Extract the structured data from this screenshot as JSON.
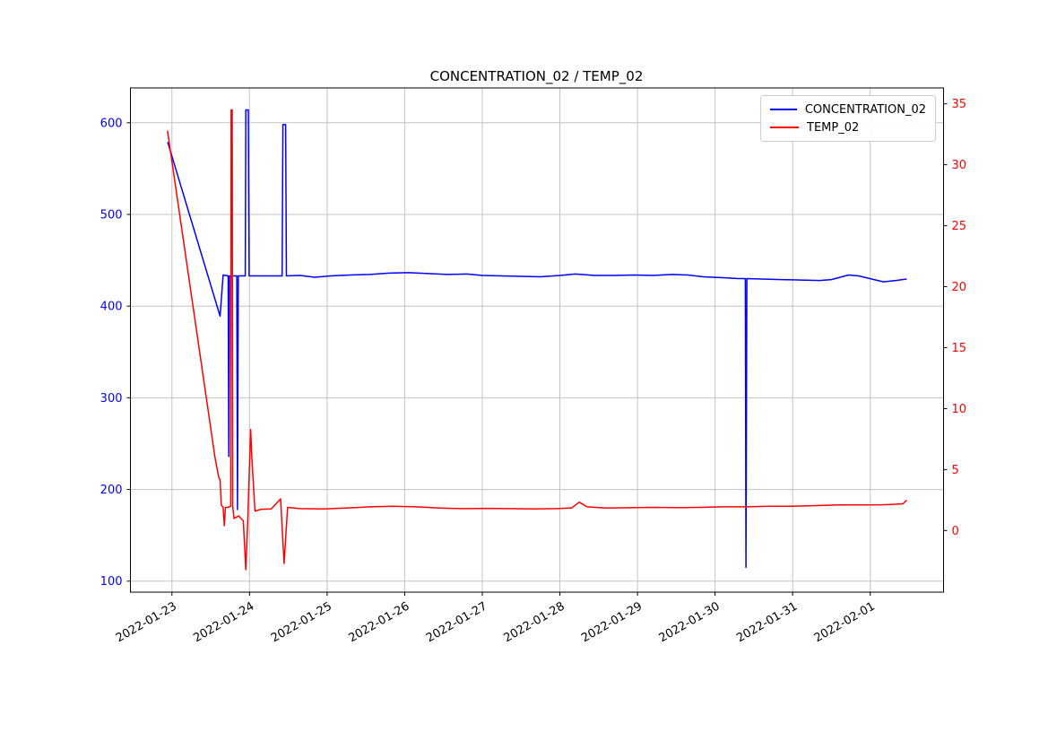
{
  "title": "CONCENTRATION_02 / TEMP_02",
  "legend": {
    "items": [
      {
        "label": "CONCENTRATION_02",
        "color": "#0000ff"
      },
      {
        "label": "TEMP_02",
        "color": "#ff0000"
      }
    ]
  },
  "chart_data": {
    "type": "line",
    "title": "CONCENTRATION_02 / TEMP_02",
    "grid": true,
    "legend_position": "upper-right",
    "x_axis": {
      "encoding": "days_since_2022-01-23",
      "tick_positions": [
        0,
        1,
        2,
        3,
        4,
        5,
        6,
        7,
        8,
        9
      ],
      "tick_labels": [
        "2022-01-23",
        "2022-01-24",
        "2022-01-25",
        "2022-01-26",
        "2022-01-27",
        "2022-01-28",
        "2022-01-29",
        "2022-01-30",
        "2022-01-31",
        "2022-02-01"
      ],
      "lim": [
        -0.535,
        9.945
      ],
      "label_color": "#000000",
      "label_rotation_deg": 30
    },
    "left_axis": {
      "ticks": [
        100,
        200,
        300,
        400,
        500,
        600
      ],
      "lim": [
        88,
        638
      ],
      "label_color": "#0000ff"
    },
    "right_axis": {
      "ticks": [
        0,
        5,
        10,
        15,
        20,
        25,
        30,
        35
      ],
      "lim": [
        -5.05,
        36.3
      ],
      "label_color": "#ff0000"
    },
    "series": [
      {
        "name": "CONCENTRATION_02",
        "color": "#0000ff",
        "axis": "left",
        "points": [
          [
            -0.055,
            579
          ],
          [
            0.62,
            389
          ],
          [
            0.66,
            434
          ],
          [
            0.725,
            433
          ],
          [
            0.733,
            236
          ],
          [
            0.742,
            433
          ],
          [
            0.835,
            433
          ],
          [
            0.845,
            178
          ],
          [
            0.855,
            433
          ],
          [
            0.945,
            433
          ],
          [
            0.952,
            614
          ],
          [
            0.985,
            614
          ],
          [
            0.995,
            433
          ],
          [
            1.42,
            433
          ],
          [
            1.43,
            598
          ],
          [
            1.465,
            598
          ],
          [
            1.475,
            433
          ],
          [
            1.65,
            433.5
          ],
          [
            1.84,
            431.5
          ],
          [
            2.05,
            433
          ],
          [
            2.3,
            434
          ],
          [
            2.55,
            434.5
          ],
          [
            2.8,
            436
          ],
          [
            3.05,
            436.5
          ],
          [
            3.3,
            435.5
          ],
          [
            3.55,
            434.5
          ],
          [
            3.8,
            435
          ],
          [
            4.0,
            433.5
          ],
          [
            4.25,
            433
          ],
          [
            4.5,
            432.5
          ],
          [
            4.75,
            432
          ],
          [
            5.0,
            433.5
          ],
          [
            5.2,
            435
          ],
          [
            5.45,
            433.5
          ],
          [
            5.7,
            433.5
          ],
          [
            5.95,
            434
          ],
          [
            6.2,
            433.5
          ],
          [
            6.45,
            434.5
          ],
          [
            6.65,
            434
          ],
          [
            6.85,
            432
          ],
          [
            7.1,
            431
          ],
          [
            7.3,
            430
          ],
          [
            7.39,
            430
          ],
          [
            7.398,
            115
          ],
          [
            7.41,
            430
          ],
          [
            7.6,
            429.5
          ],
          [
            7.85,
            429
          ],
          [
            8.1,
            428.5
          ],
          [
            8.35,
            428
          ],
          [
            8.5,
            429
          ],
          [
            8.72,
            434
          ],
          [
            8.85,
            433
          ],
          [
            9.17,
            426.5
          ],
          [
            9.33,
            428
          ],
          [
            9.47,
            429.5
          ]
        ]
      },
      {
        "name": "TEMP_02",
        "color": "#ff0000",
        "axis": "right",
        "points": [
          [
            -0.058,
            32.8
          ],
          [
            0.555,
            6.0
          ],
          [
            0.605,
            4.3
          ],
          [
            0.62,
            4.2
          ],
          [
            0.635,
            2.1
          ],
          [
            0.66,
            1.9
          ],
          [
            0.675,
            0.4
          ],
          [
            0.69,
            1.9
          ],
          [
            0.72,
            1.9
          ],
          [
            0.758,
            2.0
          ],
          [
            0.763,
            34.5
          ],
          [
            0.777,
            34.5
          ],
          [
            0.783,
            2.0
          ],
          [
            0.8,
            1.0
          ],
          [
            0.86,
            1.2
          ],
          [
            0.92,
            0.8
          ],
          [
            0.952,
            -3.2
          ],
          [
            0.975,
            0.5
          ],
          [
            1.015,
            8.3
          ],
          [
            1.03,
            6.0
          ],
          [
            1.07,
            1.6
          ],
          [
            1.15,
            1.75
          ],
          [
            1.28,
            1.78
          ],
          [
            1.4,
            2.6
          ],
          [
            1.445,
            -2.7
          ],
          [
            1.49,
            1.9
          ],
          [
            1.65,
            1.8
          ],
          [
            1.95,
            1.78
          ],
          [
            2.25,
            1.85
          ],
          [
            2.55,
            1.95
          ],
          [
            2.85,
            2.0
          ],
          [
            3.15,
            1.95
          ],
          [
            3.45,
            1.85
          ],
          [
            3.75,
            1.8
          ],
          [
            4.05,
            1.82
          ],
          [
            4.35,
            1.8
          ],
          [
            4.65,
            1.78
          ],
          [
            4.95,
            1.8
          ],
          [
            5.15,
            1.85
          ],
          [
            5.25,
            2.33
          ],
          [
            5.35,
            1.95
          ],
          [
            5.6,
            1.85
          ],
          [
            5.9,
            1.87
          ],
          [
            6.2,
            1.9
          ],
          [
            6.5,
            1.88
          ],
          [
            6.8,
            1.9
          ],
          [
            7.1,
            1.95
          ],
          [
            7.4,
            1.95
          ],
          [
            7.7,
            2.0
          ],
          [
            8.0,
            2.0
          ],
          [
            8.3,
            2.05
          ],
          [
            8.6,
            2.1
          ],
          [
            8.9,
            2.1
          ],
          [
            9.15,
            2.12
          ],
          [
            9.3,
            2.15
          ],
          [
            9.42,
            2.2
          ],
          [
            9.47,
            2.5
          ]
        ]
      }
    ]
  }
}
